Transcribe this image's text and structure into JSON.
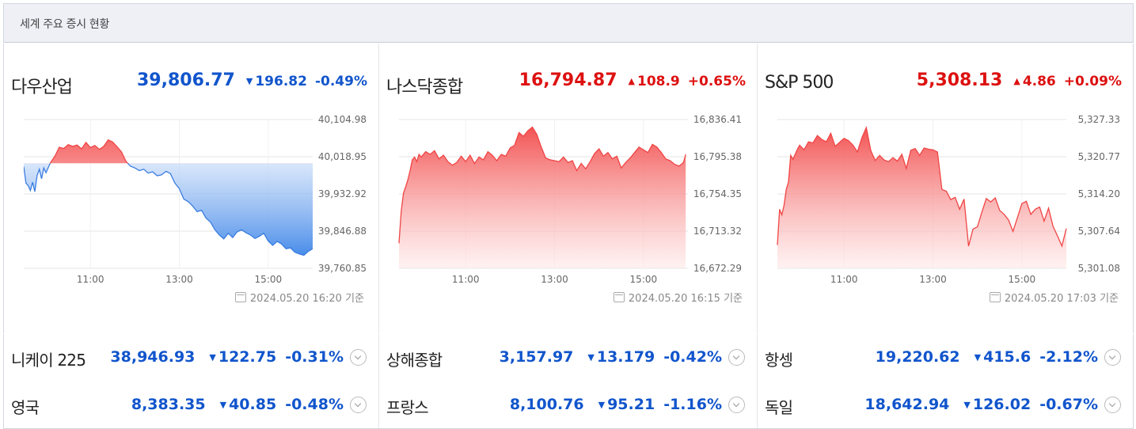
{
  "header": {
    "title": "세계 주요 증시 현황"
  },
  "main_indices": [
    {
      "name": "다우산업",
      "value": "39,806.77",
      "direction": "down",
      "change": "196.82",
      "percent": "-0.49%",
      "timestamp": "2024.05.20 16:20 기준",
      "chart_data": {
        "type": "area",
        "x_ticks": [
          "11:00",
          "13:00",
          "15:00"
        ],
        "y_ticks": [
          "40,104.98",
          "40,018.95",
          "39,932.92",
          "39,846.88",
          "39,760.85"
        ],
        "ylim": [
          39760.85,
          40104.98
        ],
        "baseline": 40003.59,
        "x": [
          9.5,
          9.55,
          9.6,
          9.65,
          9.7,
          9.75,
          9.8,
          9.85,
          9.9,
          9.95,
          10.0,
          10.1,
          10.2,
          10.3,
          10.4,
          10.5,
          10.6,
          10.7,
          10.8,
          10.9,
          11.0,
          11.1,
          11.2,
          11.3,
          11.4,
          11.5,
          11.6,
          11.7,
          11.8,
          11.9,
          12.0,
          12.1,
          12.2,
          12.3,
          12.4,
          12.5,
          12.6,
          12.7,
          12.8,
          12.9,
          13.0,
          13.1,
          13.2,
          13.3,
          13.4,
          13.5,
          13.6,
          13.7,
          13.8,
          13.9,
          14.0,
          14.1,
          14.2,
          14.3,
          14.4,
          14.5,
          14.6,
          14.7,
          14.8,
          14.9,
          15.0,
          15.1,
          15.2,
          15.3,
          15.4,
          15.5,
          15.6,
          15.7,
          15.8,
          15.9,
          16.0
        ],
        "y": [
          39996,
          39958,
          39952,
          39941,
          39960,
          39938,
          39975,
          39990,
          39968,
          39993,
          39982,
          40005,
          40020,
          40041,
          40038,
          40047,
          40043,
          40046,
          40037,
          40052,
          40040,
          40045,
          40036,
          40043,
          40058,
          40053,
          40042,
          40030,
          40008,
          39997,
          39993,
          39987,
          39990,
          39981,
          39984,
          39975,
          39977,
          39985,
          39980,
          39958,
          39945,
          39921,
          39915,
          39905,
          39892,
          39895,
          39877,
          39868,
          39850,
          39838,
          39829,
          39842,
          39832,
          39845,
          39850,
          39843,
          39838,
          39830,
          39835,
          39842,
          39824,
          39814,
          39823,
          39817,
          39806,
          39808,
          39798,
          39794,
          39791,
          39800,
          39806
        ]
      }
    },
    {
      "name": "나스닥종합",
      "value": "16,794.87",
      "direction": "up",
      "change": "108.9",
      "percent": "+0.65%",
      "timestamp": "2024.05.20 16:15 기준",
      "chart_data": {
        "type": "area",
        "x_ticks": [
          "11:00",
          "13:00",
          "15:00"
        ],
        "y_ticks": [
          "16,836.41",
          "16,795.38",
          "16,754.35",
          "16,713.32",
          "16,672.29"
        ],
        "ylim": [
          16672.29,
          16836.41
        ],
        "x": [
          9.5,
          9.55,
          9.6,
          9.65,
          9.7,
          9.75,
          9.8,
          9.85,
          9.9,
          9.95,
          10.0,
          10.1,
          10.2,
          10.3,
          10.4,
          10.5,
          10.6,
          10.7,
          10.8,
          10.9,
          11.0,
          11.1,
          11.2,
          11.3,
          11.4,
          11.5,
          11.6,
          11.7,
          11.8,
          11.9,
          12.0,
          12.1,
          12.2,
          12.3,
          12.4,
          12.5,
          12.6,
          12.7,
          12.8,
          12.9,
          13.0,
          13.1,
          13.2,
          13.3,
          13.4,
          13.5,
          13.6,
          13.7,
          13.8,
          13.9,
          14.0,
          14.1,
          14.2,
          14.3,
          14.4,
          14.5,
          14.6,
          14.7,
          14.8,
          14.9,
          15.0,
          15.1,
          15.2,
          15.3,
          15.4,
          15.5,
          15.6,
          15.7,
          15.8,
          15.9,
          15.95
        ],
        "y": [
          16700,
          16735,
          16755,
          16762,
          16770,
          16780,
          16792,
          16795,
          16790,
          16798,
          16795,
          16801,
          16798,
          16802,
          16793,
          16797,
          16790,
          16786,
          16789,
          16796,
          16790,
          16797,
          16788,
          16795,
          16792,
          16801,
          16797,
          16791,
          16798,
          16796,
          16805,
          16808,
          16822,
          16818,
          16824,
          16828,
          16820,
          16806,
          16794,
          16792,
          16791,
          16790,
          16795,
          16789,
          16791,
          16780,
          16788,
          16782,
          16790,
          16799,
          16804,
          16796,
          16800,
          16793,
          16796,
          16783,
          16789,
          16794,
          16800,
          16806,
          16803,
          16800,
          16809,
          16806,
          16800,
          16793,
          16791,
          16787,
          16785,
          16789,
          16798
        ]
      }
    },
    {
      "name": "S&P 500",
      "value": "5,308.13",
      "direction": "up",
      "change": "4.86",
      "percent": "+0.09%",
      "timestamp": "2024.05.20 17:03 기준",
      "chart_data": {
        "type": "area",
        "x_ticks": [
          "11:00",
          "13:00",
          "15:00"
        ],
        "y_ticks": [
          "5,327.33",
          "5,320.77",
          "5,314.20",
          "5,307.64",
          "5,301.08"
        ],
        "ylim": [
          5301.08,
          5327.33
        ],
        "x": [
          9.5,
          9.55,
          9.6,
          9.65,
          9.7,
          9.75,
          9.8,
          9.85,
          9.9,
          9.95,
          10.0,
          10.1,
          10.2,
          10.3,
          10.4,
          10.5,
          10.6,
          10.7,
          10.8,
          10.9,
          11.0,
          11.1,
          11.2,
          11.3,
          11.4,
          11.5,
          11.6,
          11.7,
          11.8,
          11.9,
          12.0,
          12.1,
          12.2,
          12.3,
          12.4,
          12.5,
          12.6,
          12.7,
          12.8,
          12.9,
          13.0,
          13.1,
          13.2,
          13.3,
          13.4,
          13.5,
          13.6,
          13.7,
          13.8,
          13.9,
          14.0,
          14.1,
          14.2,
          14.3,
          14.4,
          14.5,
          14.6,
          14.7,
          14.8,
          14.9,
          15.0,
          15.1,
          15.2,
          15.3,
          15.4,
          15.5,
          15.6,
          15.7,
          15.8,
          15.9,
          16.0
        ],
        "y": [
          5305.2,
          5311.5,
          5310.5,
          5312.2,
          5315.0,
          5316.3,
          5321.0,
          5320.3,
          5321.2,
          5322.1,
          5322.8,
          5322.0,
          5323.4,
          5323.2,
          5324.5,
          5323.8,
          5323.4,
          5324.9,
          5322.6,
          5323.3,
          5324.0,
          5323.6,
          5322.8,
          5321.6,
          5324.1,
          5325.9,
          5321.9,
          5320.1,
          5321.0,
          5320.2,
          5319.9,
          5320.6,
          5320.0,
          5321.2,
          5318.7,
          5321.9,
          5322.2,
          5321.0,
          5322.3,
          5322.1,
          5322.0,
          5321.6,
          5315.0,
          5314.7,
          5313.2,
          5313.6,
          5311.5,
          5313.3,
          5305.0,
          5308.0,
          5308.4,
          5311.0,
          5313.4,
          5312.8,
          5313.5,
          5311.3,
          5310.6,
          5309.6,
          5307.6,
          5310.0,
          5312.5,
          5312.9,
          5310.6,
          5311.5,
          5311.9,
          5309.4,
          5311.7,
          5308.5,
          5306.8,
          5305.0,
          5308.1
        ]
      }
    }
  ],
  "sub_indices": [
    [
      {
        "name": "니케이 225",
        "value": "38,946.93",
        "direction": "down",
        "change": "122.75",
        "percent": "-0.31%"
      },
      {
        "name": "상해종합",
        "value": "3,157.97",
        "direction": "down",
        "change": "13.179",
        "percent": "-0.42%"
      },
      {
        "name": "항셍",
        "value": "19,220.62",
        "direction": "down",
        "change": "415.6",
        "percent": "-2.12%"
      }
    ],
    [
      {
        "name": "영국",
        "value": "8,383.35",
        "direction": "down",
        "change": "40.85",
        "percent": "-0.48%"
      },
      {
        "name": "프랑스",
        "value": "8,100.76",
        "direction": "down",
        "change": "95.21",
        "percent": "-1.16%"
      },
      {
        "name": "독일",
        "value": "18,642.94",
        "direction": "down",
        "change": "126.02",
        "percent": "-0.67%"
      }
    ]
  ],
  "colors": {
    "up": "#dd1111",
    "down": "#1155cc",
    "up_line": "#f04545",
    "down_line": "#3a7de0",
    "grid": "#e6e6e6"
  },
  "glyphs": {
    "up": "▲",
    "down": "▼"
  }
}
